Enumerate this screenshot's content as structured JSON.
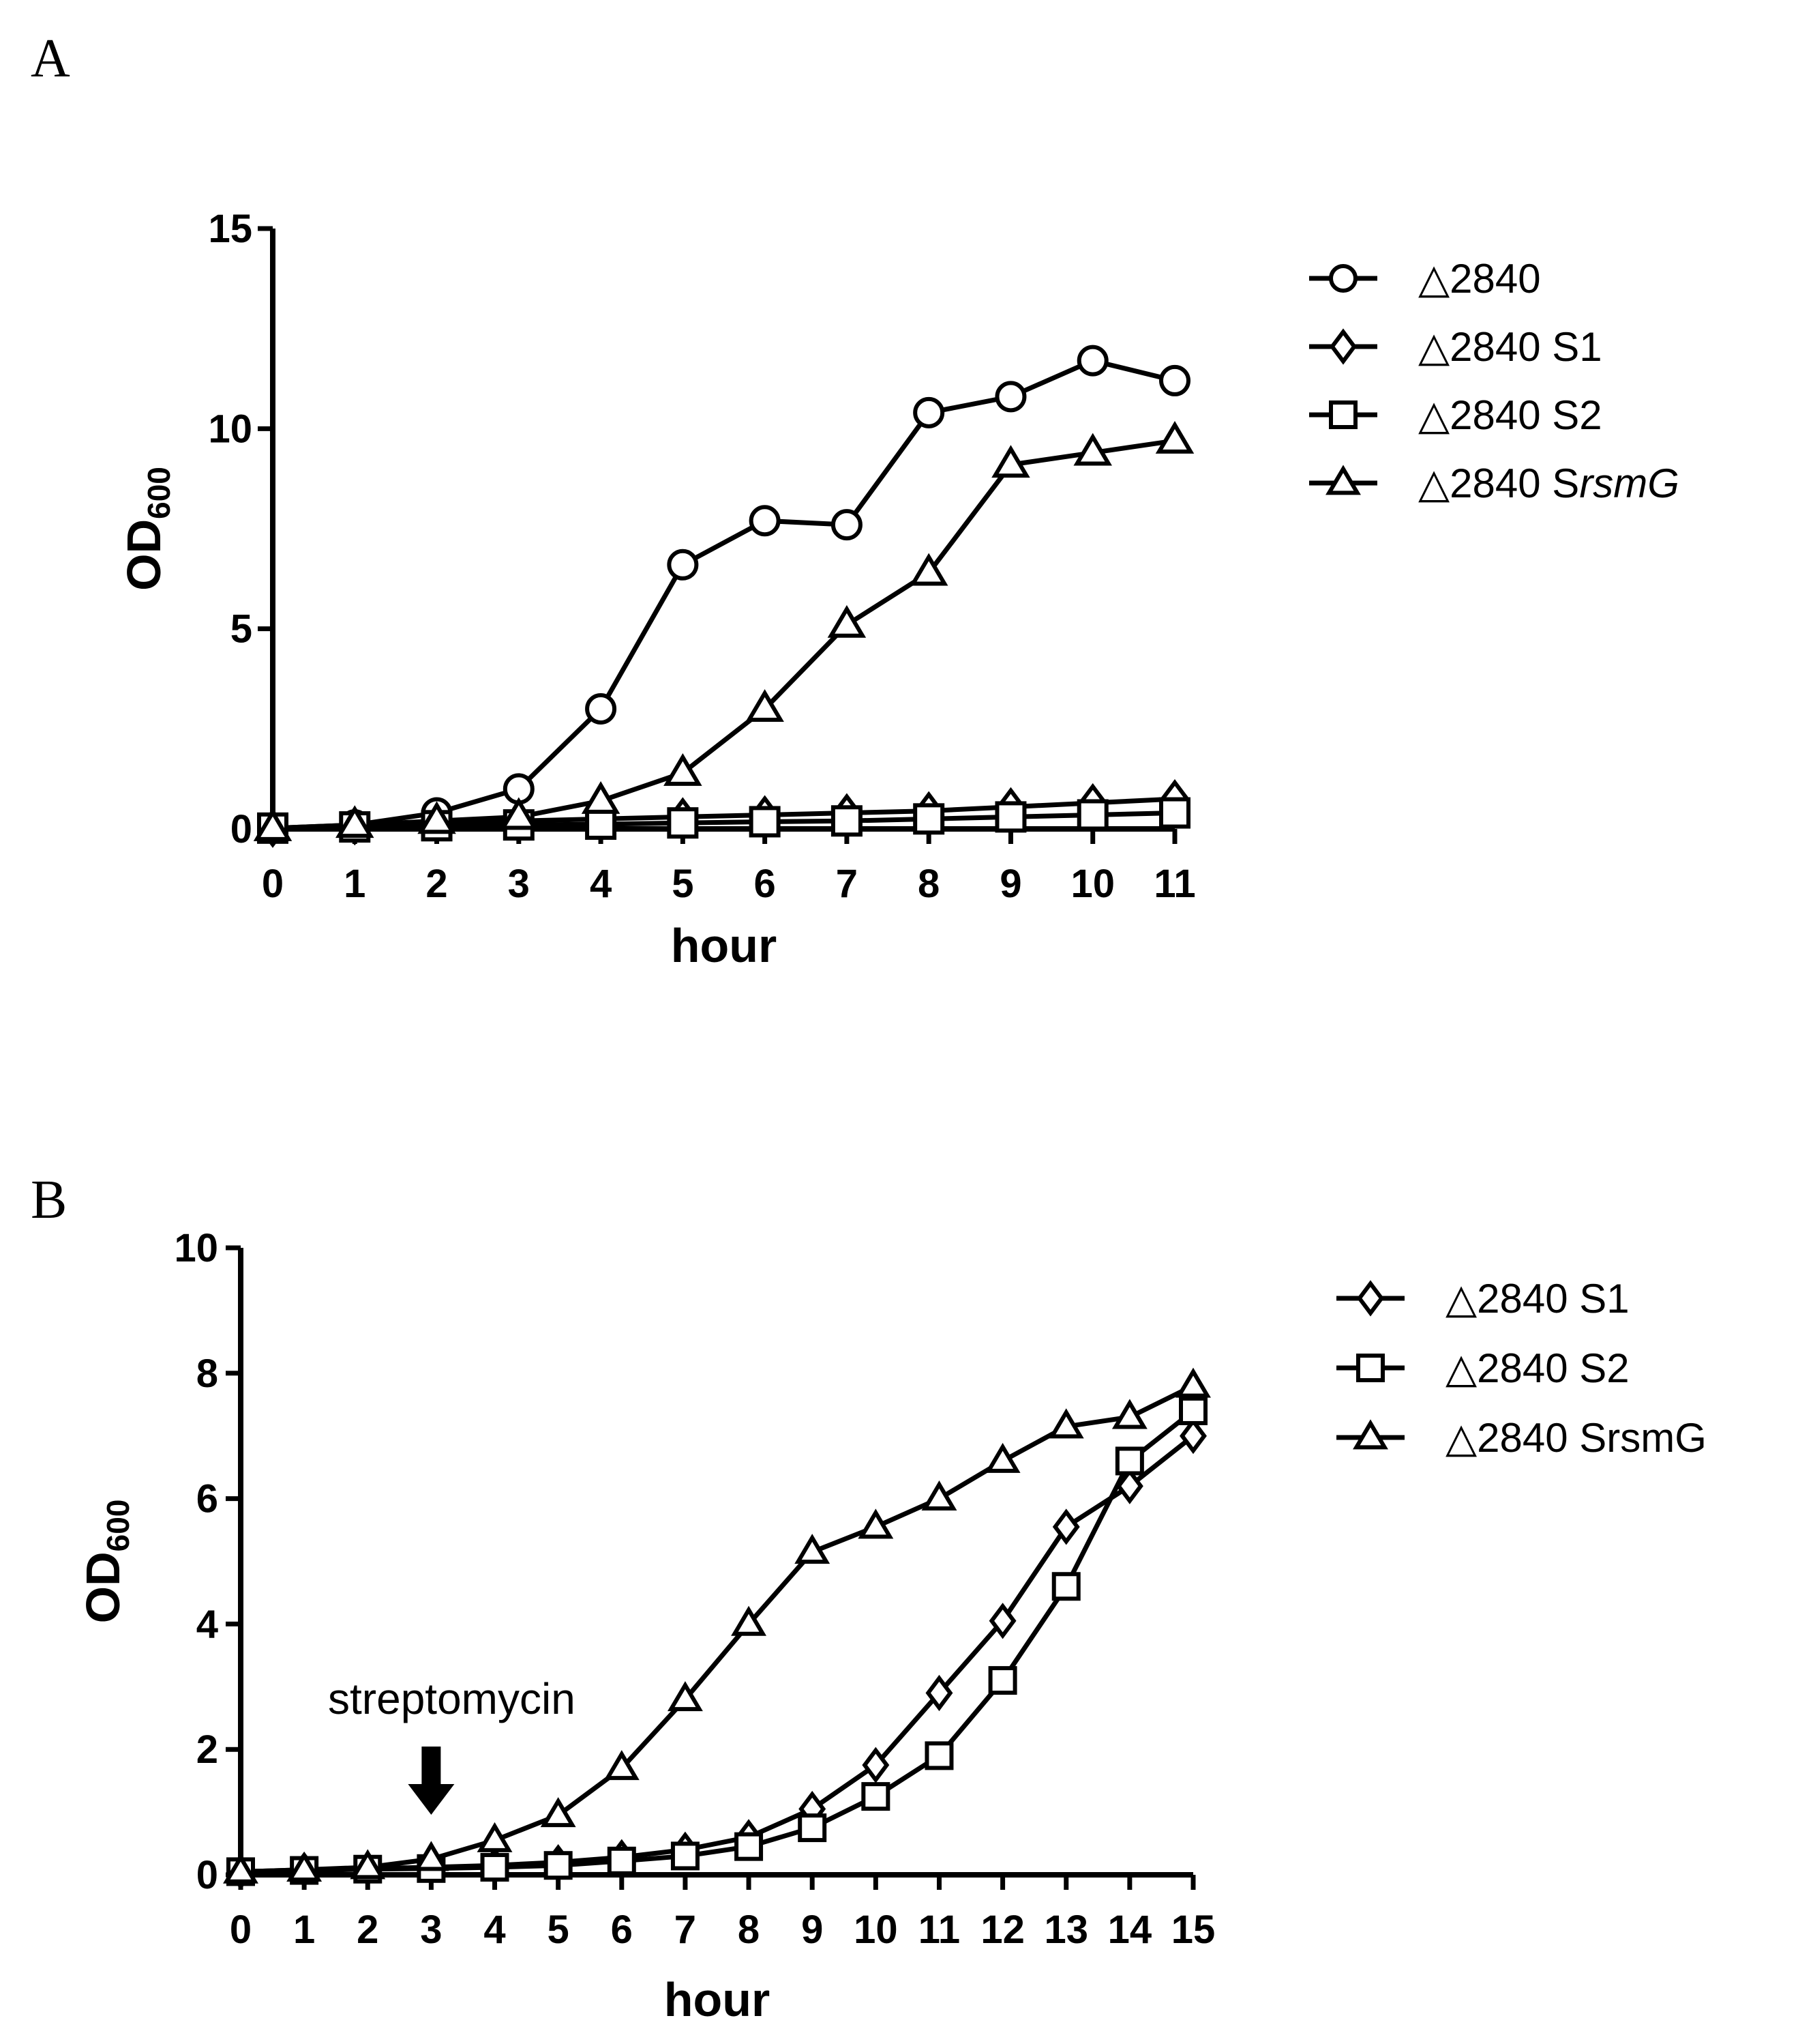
{
  "chart_data": [
    {
      "panel": "A",
      "type": "line",
      "xlabel": "hour",
      "ylabel": "OD",
      "ylabel_sub": "600",
      "xlim": [
        0,
        11
      ],
      "ylim": [
        0,
        15
      ],
      "xticks": [
        0,
        1,
        2,
        3,
        4,
        5,
        6,
        7,
        8,
        9,
        10,
        11
      ],
      "yticks": [
        0,
        5,
        10,
        15
      ],
      "x": [
        0,
        1,
        2,
        3,
        4,
        5,
        6,
        7,
        8,
        9,
        10,
        11
      ],
      "series": [
        {
          "name": "△2840",
          "suffix": "",
          "marker": "circle",
          "values": [
            0.02,
            0.1,
            0.4,
            1.0,
            3.0,
            6.6,
            7.7,
            7.6,
            10.4,
            10.8,
            11.7,
            11.2
          ]
        },
        {
          "name": "△2840 S1",
          "suffix": "",
          "marker": "diamond",
          "values": [
            0.02,
            0.08,
            0.15,
            0.2,
            0.25,
            0.3,
            0.35,
            0.4,
            0.45,
            0.55,
            0.65,
            0.75
          ]
        },
        {
          "name": "△2840 S2",
          "suffix": "",
          "marker": "square",
          "values": [
            0.02,
            0.05,
            0.08,
            0.1,
            0.12,
            0.15,
            0.18,
            0.2,
            0.25,
            0.3,
            0.35,
            0.4
          ]
        },
        {
          "name": "△2840 S",
          "suffix": "rsmG",
          "marker": "triangle",
          "values": [
            0.02,
            0.1,
            0.2,
            0.3,
            0.7,
            1.4,
            3.0,
            5.1,
            6.4,
            9.1,
            9.4,
            9.7
          ]
        }
      ]
    },
    {
      "panel": "B",
      "type": "line",
      "xlabel": "hour",
      "ylabel": "OD",
      "ylabel_sub": "600",
      "xlim": [
        0,
        15
      ],
      "ylim": [
        0,
        10
      ],
      "xticks": [
        0,
        1,
        2,
        3,
        4,
        5,
        6,
        7,
        8,
        9,
        10,
        11,
        12,
        13,
        14,
        15
      ],
      "yticks": [
        0,
        2,
        4,
        6,
        8,
        10
      ],
      "x": [
        0,
        1,
        2,
        3,
        4,
        5,
        6,
        7,
        8,
        9,
        10,
        11,
        12,
        13,
        14,
        15
      ],
      "annotation": {
        "text": "streptomycin",
        "x": 3
      },
      "series": [
        {
          "name": "△2840 S1",
          "marker": "diamond",
          "values": [
            0.05,
            0.08,
            0.1,
            0.12,
            0.15,
            0.2,
            0.28,
            0.4,
            0.6,
            1.05,
            1.75,
            2.9,
            4.05,
            5.55,
            6.2,
            7.0
          ]
        },
        {
          "name": "△2840 S2",
          "marker": "square",
          "values": [
            0.05,
            0.07,
            0.09,
            0.1,
            0.12,
            0.15,
            0.22,
            0.3,
            0.45,
            0.75,
            1.25,
            1.9,
            3.1,
            4.6,
            6.6,
            7.4
          ]
        },
        {
          "name": "△2840 SrsmG",
          "marker": "triangle",
          "values": [
            0.05,
            0.08,
            0.12,
            0.25,
            0.55,
            0.95,
            1.7,
            2.8,
            4.0,
            5.15,
            5.55,
            6.0,
            6.6,
            7.15,
            7.3,
            7.8
          ]
        }
      ]
    }
  ]
}
